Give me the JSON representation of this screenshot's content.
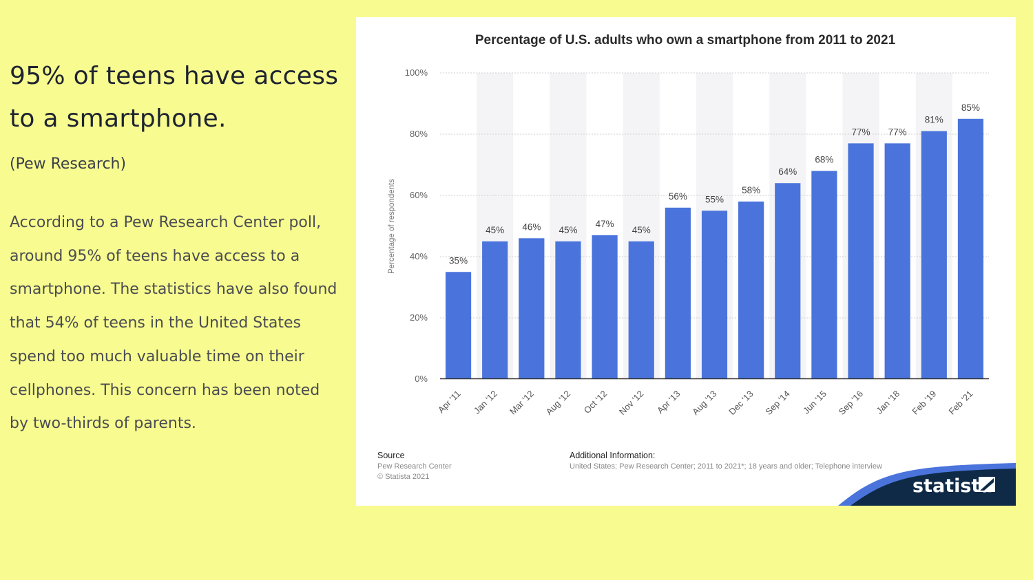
{
  "slide": {
    "heading": "95% of teens have access to a smartphone.",
    "source_note": "(Pew Research)",
    "body": "According to a Pew Research Center poll, around 95% of teens have access to a smartphone. The statistics have also found that 54% of teens in the United States spend too much valuable time on their cellphones. This concern has been noted by two-thirds of parents."
  },
  "chart_data": {
    "type": "bar",
    "title": "Percentage of U.S. adults who own a smartphone from 2011 to 2021",
    "ylabel": "Percentage of respondents",
    "xlabel": "",
    "ylim": [
      0,
      100
    ],
    "yticks": [
      0,
      20,
      40,
      60,
      80,
      100
    ],
    "ytick_labels": [
      "0%",
      "20%",
      "40%",
      "60%",
      "80%",
      "100%"
    ],
    "grid": true,
    "bar_color": "#4a74dc",
    "categories": [
      "Apr '11",
      "Jan '12",
      "Mar '12",
      "Aug '12",
      "Oct '12",
      "Nov '12",
      "Apr '13",
      "Aug '13",
      "Dec '13",
      "Sep '14",
      "Jun '15",
      "Sep '16",
      "Jan '18",
      "Feb '19",
      "Feb '21"
    ],
    "values": [
      35,
      45,
      46,
      45,
      47,
      45,
      56,
      55,
      58,
      64,
      68,
      77,
      77,
      81,
      85
    ],
    "value_labels": [
      "35%",
      "45%",
      "46%",
      "45%",
      "47%",
      "45%",
      "56%",
      "55%",
      "58%",
      "64%",
      "68%",
      "77%",
      "77%",
      "81%",
      "85%"
    ]
  },
  "footer": {
    "source_heading": "Source",
    "source_name": "Pew Research Center",
    "copyright": "© Statista 2021",
    "info_heading": "Additional Information:",
    "info_text": "United States; Pew Research Center; 2011 to 2021*; 18 years and older; Telephone interview",
    "brand": "statista",
    "brand_color": "#0f2a47",
    "accent_color": "#4a74dc"
  }
}
